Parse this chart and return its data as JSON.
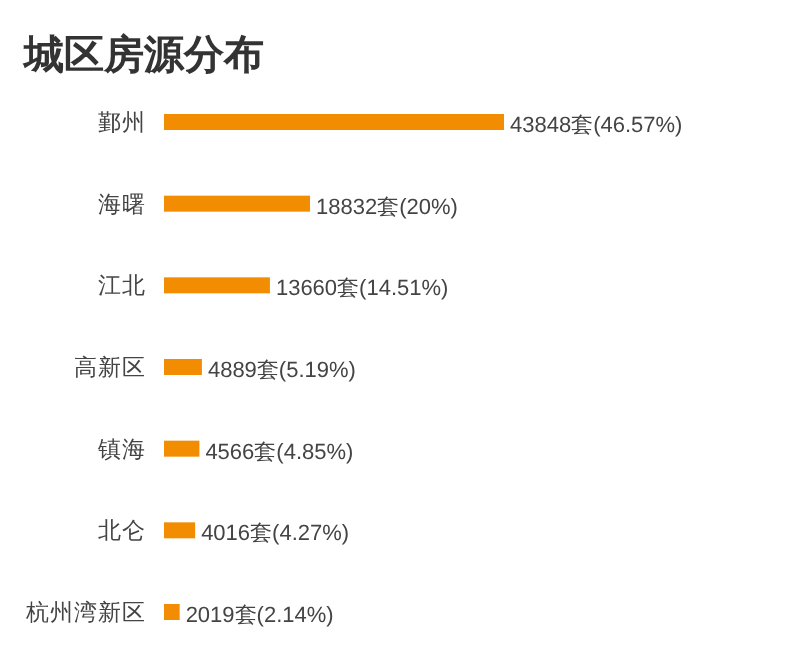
{
  "chart_data": {
    "type": "bar",
    "orientation": "horizontal",
    "title": "城区房源分布",
    "categories": [
      "鄞州",
      "海曙",
      "江北",
      "高新区",
      "镇海",
      "北仑",
      "杭州湾新区"
    ],
    "values": [
      43848,
      18832,
      13660,
      4889,
      4566,
      4016,
      2019
    ],
    "value_labels": [
      "43848套(46.57%)",
      "18832套(20%)",
      "13660套(14.51%)",
      "4889套(5.19%)",
      "4566套(4.85%)",
      "4016套(4.27%)",
      "2019套(2.14%)"
    ],
    "color": "#f28c00"
  }
}
